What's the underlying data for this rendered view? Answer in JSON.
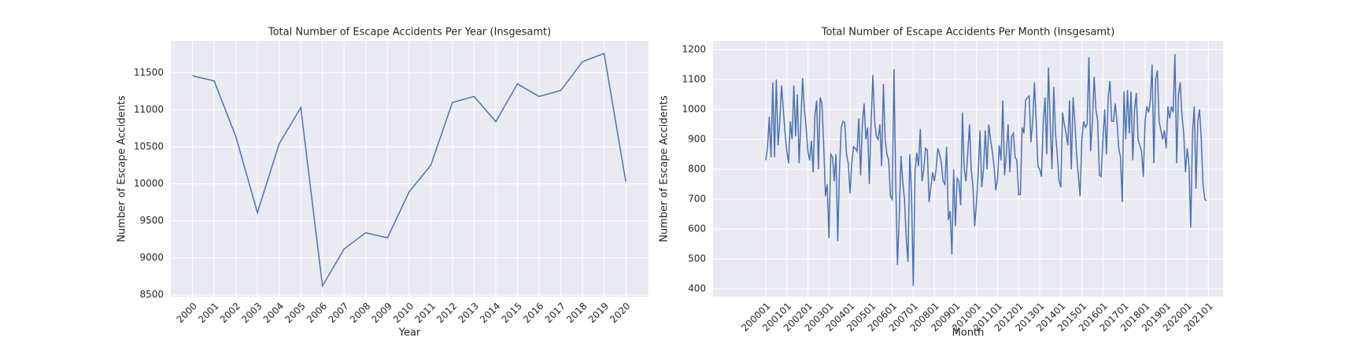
{
  "chart_data": [
    {
      "type": "line",
      "title": "Total Number of Escape Accidents Per Year (Insgesamt)",
      "x_label": "Year",
      "y_label": "Number of Escape Accidents",
      "x": [
        2000,
        2001,
        2002,
        2003,
        2004,
        2005,
        2006,
        2007,
        2008,
        2009,
        2010,
        2011,
        2012,
        2013,
        2014,
        2015,
        2016,
        2017,
        2018,
        2019,
        2020
      ],
      "values": [
        11460,
        11390,
        10640,
        9610,
        10540,
        11030,
        8620,
        9120,
        9340,
        9270,
        9890,
        10250,
        11100,
        11180,
        10840,
        11350,
        11180,
        11260,
        11650,
        11760,
        10030
      ],
      "color": "#4c72b0",
      "xlim": [
        1999,
        2021.05
      ],
      "xticks": [
        2000,
        2001,
        2002,
        2003,
        2004,
        2005,
        2006,
        2007,
        2008,
        2009,
        2010,
        2011,
        2012,
        2013,
        2014,
        2015,
        2016,
        2017,
        2018,
        2019,
        2020
      ],
      "ylim": [
        8475,
        11930
      ],
      "yticks": [
        8500,
        9000,
        9500,
        10000,
        10500,
        11000,
        11500
      ],
      "grid": true
    },
    {
      "type": "line",
      "title": "Total Number of Escape Accidents Per Month (Insgesamt)",
      "x_label": "Month",
      "y_label": "Number of Escape Accidents",
      "values": [
        830,
        870,
        975,
        840,
        1090,
        840,
        1100,
        880,
        960,
        1080,
        1000,
        920,
        860,
        820,
        960,
        900,
        1080,
        910,
        1050,
        820,
        960,
        1105,
        1000,
        940,
        860,
        830,
        895,
        790,
        980,
        1030,
        800,
        1040,
        1020,
        880,
        710,
        750,
        570,
        850,
        840,
        760,
        850,
        560,
        800,
        940,
        960,
        955,
        850,
        820,
        720,
        820,
        875,
        870,
        860,
        970,
        780,
        950,
        1020,
        900,
        940,
        750,
        960,
        1115,
        960,
        910,
        900,
        950,
        810,
        1085,
        900,
        850,
        830,
        710,
        700,
        1135,
        760,
        480,
        640,
        845,
        760,
        700,
        570,
        490,
        850,
        720,
        410,
        790,
        855,
        810,
        935,
        760,
        800,
        870,
        865,
        690,
        740,
        790,
        760,
        800,
        870,
        850,
        820,
        760,
        750,
        875,
        630,
        660,
        515,
        800,
        610,
        770,
        760,
        680,
        990,
        800,
        760,
        850,
        950,
        800,
        740,
        610,
        690,
        790,
        930,
        740,
        800,
        930,
        800,
        950,
        900,
        860,
        810,
        730,
        770,
        880,
        830,
        1030,
        780,
        850,
        950,
        790,
        910,
        920,
        840,
        830,
        715,
        715,
        940,
        920,
        1030,
        1040,
        1045,
        890,
        960,
        1090,
        960,
        810,
        800,
        775,
        950,
        1040,
        850,
        1140,
        950,
        800,
        1075,
        920,
        850,
        760,
        740,
        990,
        950,
        920,
        880,
        1030,
        800,
        1040,
        960,
        850,
        780,
        710,
        900,
        960,
        940,
        950,
        1175,
        860,
        960,
        1110,
        1000,
        960,
        780,
        775,
        900,
        1000,
        850,
        1040,
        1095,
        960,
        960,
        1020,
        960,
        870,
        840,
        690,
        1060,
        900,
        1065,
        920,
        1060,
        830,
        1000,
        1055,
        900,
        880,
        860,
        775,
        960,
        1010,
        990,
        1030,
        1150,
        820,
        1100,
        1130,
        960,
        930,
        900,
        930,
        870,
        1010,
        970,
        1010,
        990,
        1185,
        820,
        1050,
        1090,
        980,
        920,
        790,
        870,
        810,
        605,
        920,
        1010,
        735,
        960,
        1000,
        900,
        750,
        700,
        695
      ],
      "color": "#4c72b0",
      "xlim": [
        -30,
        260.4
      ],
      "xticks": [
        {
          "value": 0,
          "label": "200001"
        },
        {
          "value": 12,
          "label": "200101"
        },
        {
          "value": 24,
          "label": "200201"
        },
        {
          "value": 36,
          "label": "200301"
        },
        {
          "value": 48,
          "label": "200401"
        },
        {
          "value": 60,
          "label": "200501"
        },
        {
          "value": 72,
          "label": "200601"
        },
        {
          "value": 84,
          "label": "200701"
        },
        {
          "value": 96,
          "label": "200801"
        },
        {
          "value": 108,
          "label": "200901"
        },
        {
          "value": 120,
          "label": "201001"
        },
        {
          "value": 132,
          "label": "201101"
        },
        {
          "value": 144,
          "label": "201201"
        },
        {
          "value": 156,
          "label": "201301"
        },
        {
          "value": 168,
          "label": "201401"
        },
        {
          "value": 180,
          "label": "201501"
        },
        {
          "value": 192,
          "label": "201601"
        },
        {
          "value": 204,
          "label": "201701"
        },
        {
          "value": 216,
          "label": "201801"
        },
        {
          "value": 228,
          "label": "201901"
        },
        {
          "value": 240,
          "label": "202001"
        },
        {
          "value": 252,
          "label": "202101"
        }
      ],
      "ylim": [
        374,
        1229
      ],
      "yticks": [
        400,
        500,
        600,
        700,
        800,
        900,
        1000,
        1100,
        1200
      ],
      "grid": true
    }
  ]
}
